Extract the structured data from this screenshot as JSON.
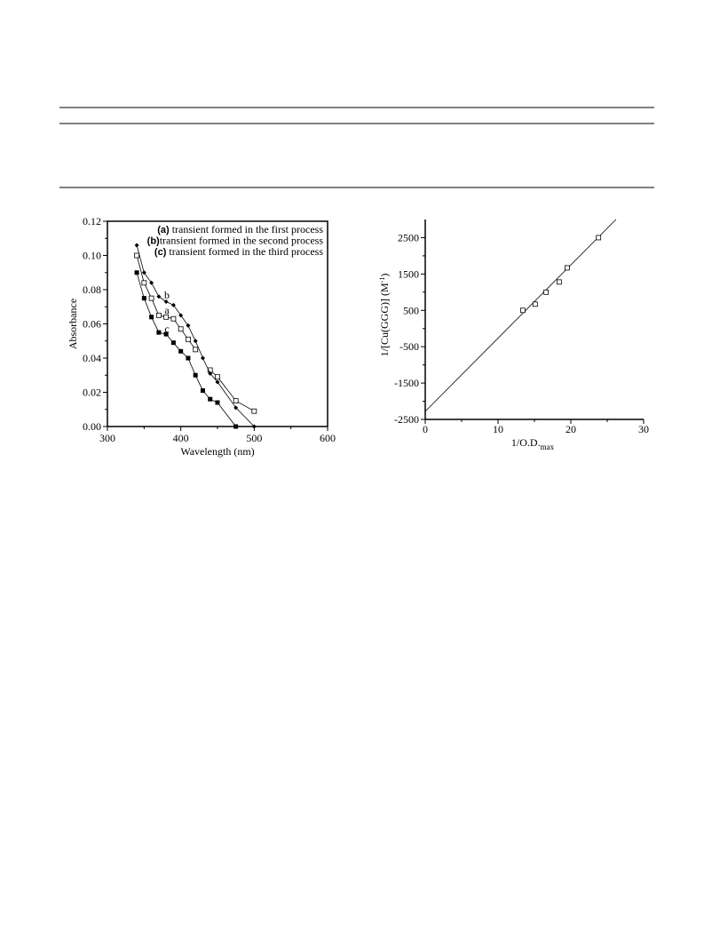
{
  "chart_data": [
    {
      "type": "line",
      "x_label": "Wavelength (nm)",
      "y_label": "Absorbance",
      "x": [
        340,
        350,
        360,
        370,
        380,
        390,
        400,
        410,
        420,
        430,
        440,
        450,
        475,
        500
      ],
      "series": [
        {
          "name": "a",
          "marker": "open-square",
          "color": "#000000",
          "values": [
            0.1,
            0.084,
            0.075,
            0.065,
            0.064,
            0.063,
            0.057,
            0.051,
            0.045,
            null,
            0.033,
            0.029,
            0.015,
            0.009
          ]
        },
        {
          "name": "b",
          "marker": "diamond",
          "color": "#000000",
          "values": [
            0.106,
            0.09,
            0.084,
            0.076,
            0.073,
            0.071,
            0.065,
            0.059,
            0.05,
            0.04,
            0.031,
            0.026,
            0.011,
            0.0
          ]
        },
        {
          "name": "c",
          "marker": "filled-square",
          "color": "#000000",
          "values": [
            0.09,
            0.075,
            0.064,
            0.055,
            0.054,
            0.049,
            0.044,
            0.04,
            0.03,
            0.021,
            0.016,
            0.014,
            0.0,
            null
          ]
        }
      ],
      "legend": [
        {
          "key": "(a)",
          "text": "transient formed in the first process"
        },
        {
          "key": "(b)",
          "text": "transient formed in the second process"
        },
        {
          "key": "(c)",
          "text": "transient formed in the third process"
        }
      ],
      "xlim": [
        300,
        600
      ],
      "xticks": [
        300,
        400,
        500,
        600
      ],
      "ylim": [
        0,
        0.12
      ],
      "yticks": [
        {
          "value": 0,
          "label": "0.00"
        },
        {
          "value": 0.02,
          "label": "0.02"
        },
        {
          "value": 0.04,
          "label": "0.04"
        },
        {
          "value": 0.06,
          "label": "0.06"
        },
        {
          "value": 0.08,
          "label": "0.08"
        },
        {
          "value": 0.1,
          "label": "0.10"
        },
        {
          "value": 0.12,
          "label": "0.12"
        }
      ]
    },
    {
      "type": "scatter",
      "x_label": [
        "1/O.D.",
        "max"
      ],
      "y_label": [
        "1/[Cu(GGG)]   (M",
        "-1",
        ")"
      ],
      "x": [
        13.4,
        15.1,
        16.6,
        18.4,
        19.5,
        23.8
      ],
      "values": [
        500,
        670,
        1000,
        1280,
        1670,
        2500
      ],
      "fit_line": {
        "x": [
          0,
          26.2
        ],
        "y": [
          -2280,
          3000
        ]
      },
      "xlim": [
        0,
        30
      ],
      "xticks": [
        0,
        10,
        20,
        30
      ],
      "ylim": [
        -2500,
        3000
      ],
      "yticks": [
        -2500,
        -1500,
        -500,
        500,
        1500,
        2500
      ]
    }
  ]
}
